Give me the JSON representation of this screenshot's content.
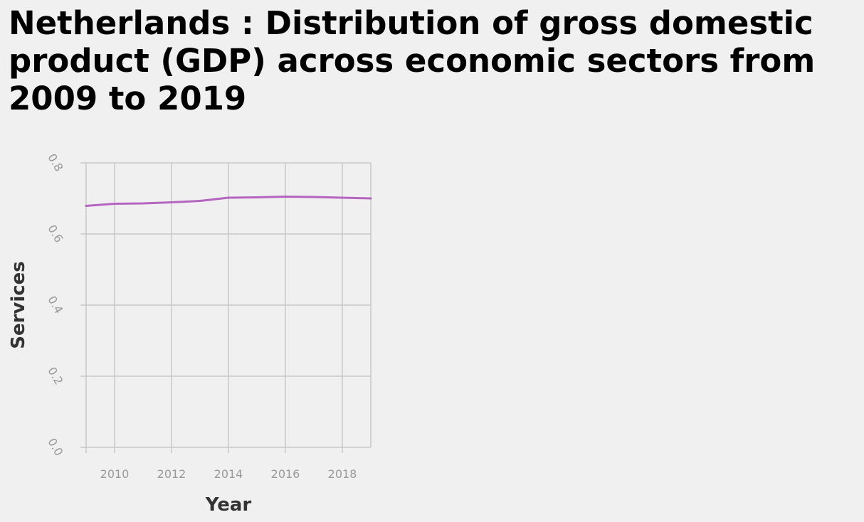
{
  "chart_data": {
    "type": "line",
    "title": "Netherlands : Distribution of gross domestic product (GDP) across economic sectors from 2009 to 2019",
    "xlabel": "Year",
    "ylabel": "Services",
    "xlim": [
      2009,
      2019
    ],
    "ylim": [
      0,
      0.8
    ],
    "x_ticks": [
      2010,
      2012,
      2014,
      2016,
      2018
    ],
    "y_ticks": [
      0.0,
      0.2,
      0.4,
      0.6,
      0.8
    ],
    "y_tick_labels": [
      "0.0",
      "0.2",
      "0.4",
      "0.6",
      "0.8"
    ],
    "grid": true,
    "series": [
      {
        "name": "Services",
        "color": "#b565c0",
        "x": [
          2009,
          2010,
          2011,
          2012,
          2013,
          2014,
          2015,
          2016,
          2017,
          2018,
          2019
        ],
        "values": [
          0.679,
          0.685,
          0.686,
          0.689,
          0.693,
          0.702,
          0.703,
          0.705,
          0.704,
          0.702,
          0.7
        ]
      }
    ]
  }
}
